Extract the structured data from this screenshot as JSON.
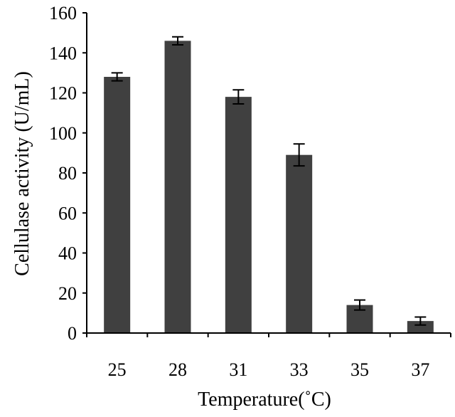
{
  "chart_data": {
    "type": "bar",
    "title": "",
    "xlabel": "Temperature(˚C)",
    "ylabel": "Cellulase activity (U/mL)",
    "categories": [
      "25",
      "28",
      "31",
      "33",
      "35",
      "37"
    ],
    "values": [
      128,
      146,
      118,
      89,
      14,
      6
    ],
    "error": [
      2,
      2,
      3.5,
      5.5,
      2.5,
      2
    ],
    "ylim": [
      0,
      160
    ],
    "yticks": [
      0,
      20,
      40,
      60,
      80,
      100,
      120,
      140,
      160
    ],
    "grid": false,
    "legend": "none",
    "bar_color": "#404040",
    "axis_color": "#000000"
  }
}
